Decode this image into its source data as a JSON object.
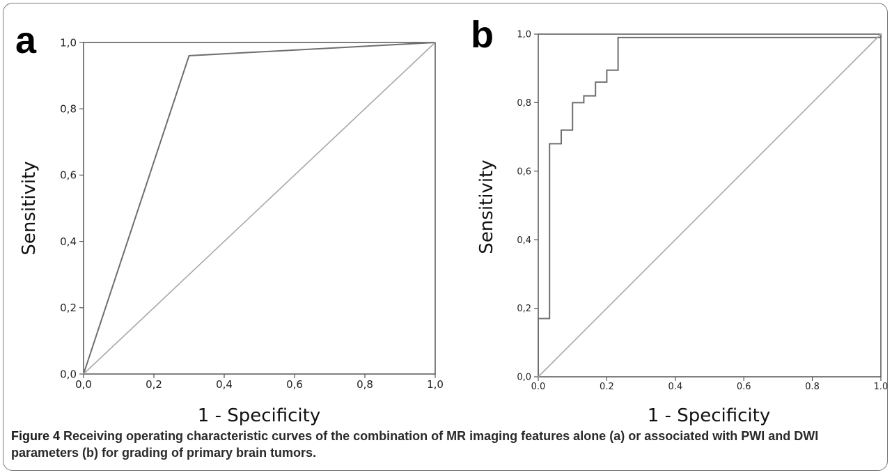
{
  "caption": {
    "label": "Figure 4",
    "text": " Receiving operating characteristic curves of the combination of MR imaging features alone (a) or associated with PWI and DWI parameters (b) for grading of primary brain tumors."
  },
  "colors": {
    "frame": "#7a7a7a",
    "curve": "#6e6e6e",
    "reference": "#a8a8a8",
    "axis": "#555555"
  },
  "chart_data": [
    {
      "type": "line",
      "panel": "a",
      "xlabel": "1 - Specificity",
      "ylabel": "Sensitivity",
      "xlim": [
        0,
        1
      ],
      "ylim": [
        0,
        1
      ],
      "x_ticks": [
        "0,0",
        "0,2",
        "0,4",
        "0,6",
        "0,8",
        "1,0"
      ],
      "y_ticks": [
        "0,0",
        "0,2",
        "0,4",
        "0,6",
        "0,8",
        "1,0"
      ],
      "grid": false,
      "series": [
        {
          "role": "roc",
          "points": [
            [
              0,
              0
            ],
            [
              0.3,
              0.96
            ],
            [
              1,
              1
            ]
          ]
        },
        {
          "role": "reference",
          "points": [
            [
              0,
              0
            ],
            [
              1,
              1
            ]
          ]
        }
      ]
    },
    {
      "type": "line",
      "panel": "b",
      "xlabel": "1 - Specificity",
      "ylabel": "Sensitivity",
      "xlim": [
        0,
        1
      ],
      "ylim": [
        0,
        1
      ],
      "x_ticks": [
        "0.0",
        "0.2",
        "0.4",
        "0.6",
        "0.8",
        "1.0"
      ],
      "y_ticks": [
        "0,0",
        "0,2",
        "0,4",
        "0,6",
        "0,8",
        "1,0"
      ],
      "grid": false,
      "series": [
        {
          "role": "roc",
          "step": true,
          "points": [
            [
              0,
              0
            ],
            [
              0,
              0.17
            ],
            [
              0.033,
              0.17
            ],
            [
              0.033,
              0.68
            ],
            [
              0.067,
              0.68
            ],
            [
              0.067,
              0.72
            ],
            [
              0.1,
              0.72
            ],
            [
              0.1,
              0.8
            ],
            [
              0.133,
              0.8
            ],
            [
              0.133,
              0.82
            ],
            [
              0.167,
              0.82
            ],
            [
              0.167,
              0.86
            ],
            [
              0.2,
              0.86
            ],
            [
              0.2,
              0.895
            ],
            [
              0.233,
              0.895
            ],
            [
              0.233,
              0.99
            ],
            [
              1,
              0.99
            ],
            [
              1,
              1
            ]
          ]
        },
        {
          "role": "reference",
          "points": [
            [
              0,
              0
            ],
            [
              1,
              1
            ]
          ]
        }
      ]
    }
  ]
}
